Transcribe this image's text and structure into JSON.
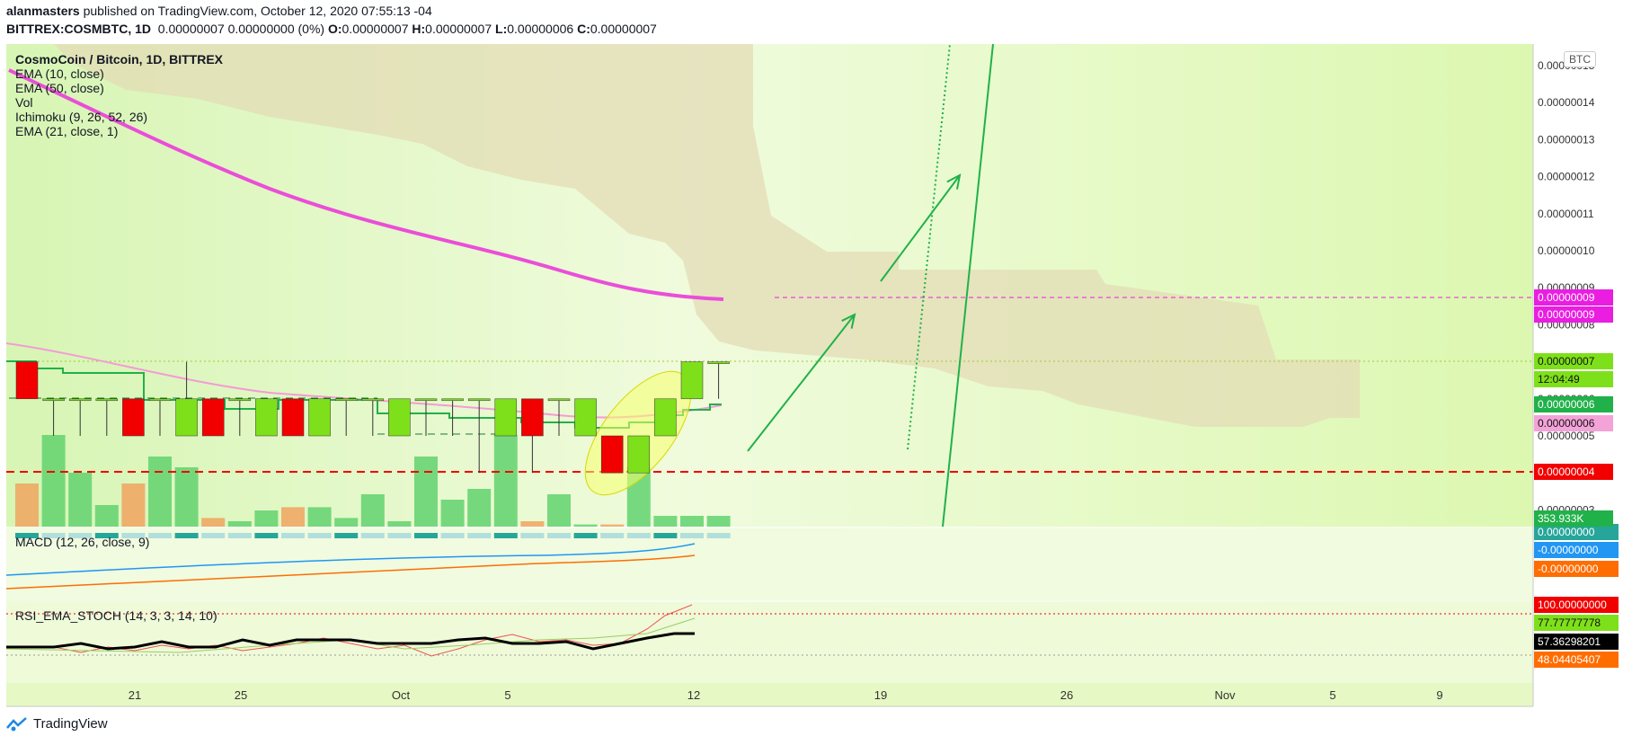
{
  "header": {
    "author": "alanmasters",
    "published_text": "published on TradingView.com, October 12, 2020 07:55:13 -04",
    "symbol": "BITTREX:COSMBTC, 1D",
    "change": "0.00000007 0.00000000 (0%)",
    "o_label": "O:",
    "o_value": "0.00000007",
    "h_label": "H:",
    "h_value": "0.00000007",
    "l_label": "L:",
    "l_value": "0.00000006",
    "c_label": "C:",
    "c_value": "0.00000007"
  },
  "legend": {
    "title": "CosmoCoin / Bitcoin, 1D, BITTREX",
    "items": [
      "EMA (10, close)",
      "EMA (50, close)",
      "Vol",
      "Ichimoku (9, 26, 52, 26)",
      "EMA (21, close, 1)"
    ],
    "macd": "MACD (12, 26, close, 9)",
    "rsi": "RSI_EMA_STOCH (14, 3, 3, 14, 10)"
  },
  "currency": "BTC",
  "brand": "TradingView",
  "chart_data": {
    "type": "candlestick",
    "price_axis_ticks": [
      "0.00000015",
      "0.00000014",
      "0.00000013",
      "0.00000012",
      "0.00000011",
      "0.00000010",
      "0.00000009",
      "0.00000008",
      "0.00000007",
      "0.00000006",
      "0.00000005",
      "0.00000004",
      "0.00000003"
    ],
    "x_ticks": [
      "21",
      "25",
      "Oct",
      "5",
      "12",
      "19",
      "26",
      "Nov",
      "5",
      "9"
    ],
    "price_labels": [
      {
        "text": "0.00000009",
        "color": "#e91ee1"
      },
      {
        "text": "0.00000009",
        "color": "#e91ee1"
      },
      {
        "text": "0.00000007",
        "color": "#7ee01a"
      },
      {
        "text": "12:04:49",
        "color": "#7ee01a"
      },
      {
        "text": "0.00000006",
        "color": "#21b14a"
      },
      {
        "text": "0.00000006",
        "color": "#f4a3d9"
      },
      {
        "text": "0.00000004",
        "color": "#f20000"
      },
      {
        "text": "353.933K",
        "color": "#21b14a"
      }
    ],
    "macd_labels": [
      {
        "text": "0.00000000",
        "color": "#26a69a"
      },
      {
        "text": "-0.00000000",
        "color": "#2196f3"
      },
      {
        "text": "-0.00000000",
        "color": "#ff6d00"
      }
    ],
    "rsi_labels": [
      {
        "text": "100.00000000",
        "color": "#f20000"
      },
      {
        "text": "77.77777778",
        "color": "#7ee01a"
      },
      {
        "text": "57.36298201",
        "color": "#000000"
      },
      {
        "text": "48.04405407",
        "color": "#ff6d00"
      }
    ],
    "candles": [
      {
        "d": 0,
        "o": 7,
        "h": 7,
        "l": 6,
        "c": 6
      },
      {
        "d": 1,
        "o": 6,
        "h": 6,
        "l": 5,
        "c": 6
      },
      {
        "d": 2,
        "o": 6,
        "h": 6,
        "l": 5,
        "c": 6
      },
      {
        "d": 3,
        "o": 6,
        "h": 6,
        "l": 5,
        "c": 6
      },
      {
        "d": 4,
        "o": 6,
        "h": 6,
        "l": 5,
        "c": 5
      },
      {
        "d": 5,
        "o": 6,
        "h": 6,
        "l": 5,
        "c": 6
      },
      {
        "d": 6,
        "o": 5,
        "h": 7,
        "l": 5,
        "c": 6
      },
      {
        "d": 7,
        "o": 6,
        "h": 6,
        "l": 5,
        "c": 5
      },
      {
        "d": 8,
        "o": 6,
        "h": 6,
        "l": 5,
        "c": 6
      },
      {
        "d": 9,
        "o": 5,
        "h": 6,
        "l": 5,
        "c": 6
      },
      {
        "d": 10,
        "o": 6,
        "h": 6,
        "l": 5,
        "c": 5
      },
      {
        "d": 11,
        "o": 5,
        "h": 6,
        "l": 5,
        "c": 6
      },
      {
        "d": 12,
        "o": 6,
        "h": 6,
        "l": 5,
        "c": 6
      },
      {
        "d": 13,
        "o": 6,
        "h": 6,
        "l": 5,
        "c": 6
      },
      {
        "d": 14,
        "o": 5,
        "h": 6,
        "l": 5,
        "c": 6
      },
      {
        "d": 15,
        "o": 6,
        "h": 6,
        "l": 5,
        "c": 6
      },
      {
        "d": 16,
        "o": 6,
        "h": 6,
        "l": 5,
        "c": 6
      },
      {
        "d": 17,
        "o": 6,
        "h": 6,
        "l": 4,
        "c": 6
      },
      {
        "d": 18,
        "o": 5,
        "h": 6,
        "l": 5,
        "c": 6
      },
      {
        "d": 19,
        "o": 6,
        "h": 6,
        "l": 4,
        "c": 5
      },
      {
        "d": 20,
        "o": 6,
        "h": 6,
        "l": 5,
        "c": 6
      },
      {
        "d": 21,
        "o": 5,
        "h": 6,
        "l": 5,
        "c": 6
      },
      {
        "d": 22,
        "o": 5,
        "h": 5,
        "l": 4,
        "c": 4
      },
      {
        "d": 23,
        "o": 4,
        "h": 5,
        "l": 4,
        "c": 5
      },
      {
        "d": 24,
        "o": 5,
        "h": 6,
        "l": 5,
        "c": 6
      },
      {
        "d": 25,
        "o": 6,
        "h": 7,
        "l": 6,
        "c": 7
      },
      {
        "d": 26,
        "o": 7,
        "h": 7,
        "l": 6,
        "c": 7
      }
    ]
  }
}
